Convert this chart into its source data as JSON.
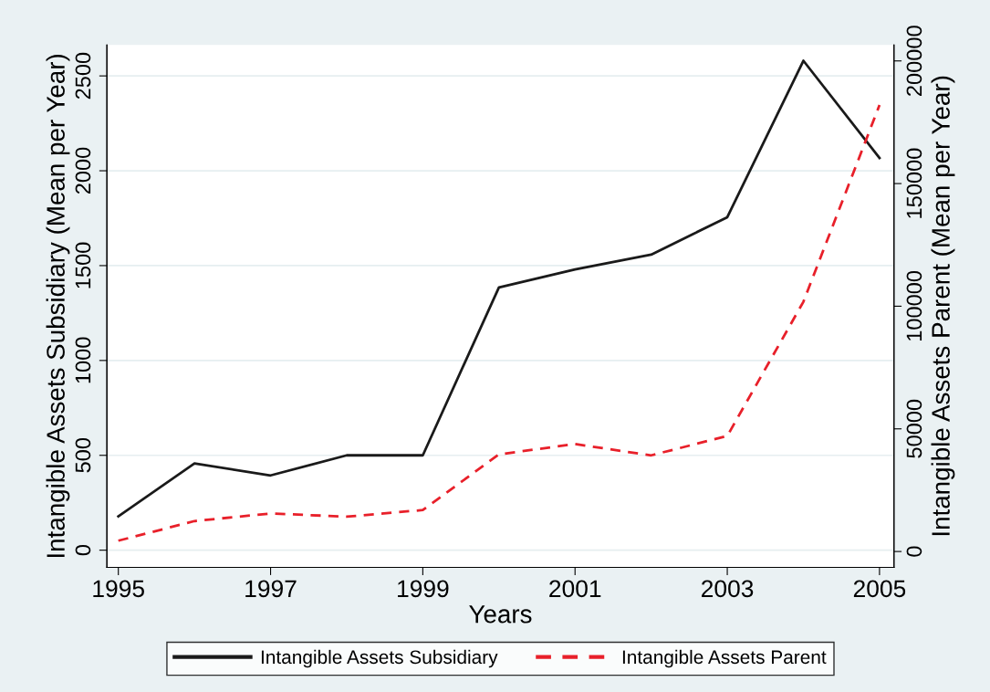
{
  "chart_data": {
    "type": "line",
    "xlabel": "Years",
    "ylabel": "Intangible Assets Subsidiary (Mean per Year)",
    "y2label": "Intangible Assets Parent (Mean per Year)",
    "x": [
      1995,
      1996,
      1997,
      1998,
      1999,
      2000,
      2001,
      2002,
      2003,
      2004,
      2005
    ],
    "series": [
      {
        "name": "Intangible Assets Subsidiary",
        "color": "#1a1a1a",
        "line_style": "solid",
        "values": [
          178,
          457,
          394,
          500,
          500,
          1385,
          1480,
          1558,
          1755,
          2580,
          2067
        ]
      },
      {
        "name": "Intangible Assets Parent",
        "color": "#e8202a",
        "line_style": "dashed",
        "axis": "y2",
        "values": [
          4400,
          12400,
          15500,
          14200,
          16900,
          39600,
          43800,
          39200,
          47100,
          101800,
          182000
        ]
      }
    ],
    "xlim": [
      1994.85,
      2005.19
    ],
    "xticks": [
      1995,
      1997,
      1999,
      2001,
      2003,
      2005
    ],
    "ylim": [
      -91,
      2663
    ],
    "yticks": [
      0,
      500,
      1000,
      1500,
      2000,
      2500
    ],
    "y2lim": [
      -6500,
      206500
    ],
    "y2ticks": [
      0,
      50000,
      100000,
      150000,
      200000
    ],
    "grid": "y",
    "legend": "bottom"
  }
}
